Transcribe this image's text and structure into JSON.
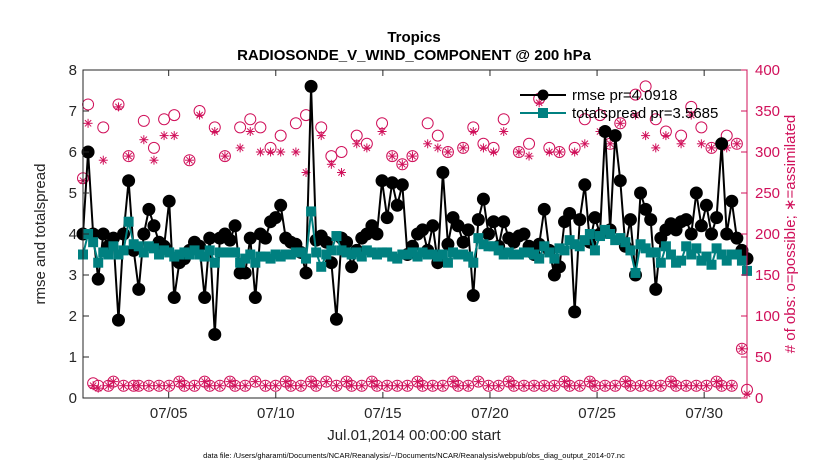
{
  "chart_data": {
    "type": "line",
    "title": "Tropics",
    "subtitle": "RADIOSONDE_V_WIND_COMPONENT @ 200 hPa",
    "xlabel": "Jul.01,2014 00:00:00 start",
    "ylabel": "rmse and totalspread",
    "ylabel_right": "# of obs: o=possible; ∗=assimilated",
    "footnote": "data file: /Users/gharamti/Documents/NCAR/Reanalysis/~/Documents/NCAR/Reanalysis/webpub/obs_diag_output_2014-07.nc",
    "xlim": [
      1.0,
      32.0
    ],
    "ylim": [
      0,
      8
    ],
    "ylim_right": [
      0,
      400
    ],
    "x_ticks": [
      5,
      10,
      15,
      20,
      25,
      30
    ],
    "x_tick_labels": [
      "07/05",
      "07/10",
      "07/15",
      "07/20",
      "07/25",
      "07/30"
    ],
    "y_ticks": [
      "0",
      "1",
      "2",
      "3",
      "4",
      "5",
      "6",
      "7",
      "8"
    ],
    "y_ticks_right": [
      "0",
      "50",
      "100",
      "150",
      "200",
      "250",
      "300",
      "350",
      "400"
    ],
    "grid": false,
    "legend_position": "top-right",
    "colors": {
      "rmse": "#000000",
      "totalspread": "#008080",
      "obs": "#d0105a",
      "axis": "#262626"
    },
    "series": [
      {
        "name": "rmse",
        "legend": "rmse pr=4.0918",
        "axis": "left",
        "marker": "circle",
        "values": [
          4.0,
          6.0,
          4.0,
          2.9,
          4.0,
          3.7,
          3.9,
          1.9,
          4.0,
          5.3,
          3.6,
          2.65,
          4.0,
          4.6,
          4.2,
          3.8,
          3.7,
          4.8,
          2.45,
          3.3,
          3.4,
          3.6,
          3.8,
          3.7,
          2.45,
          3.9,
          1.55,
          3.9,
          4.0,
          3.85,
          4.2,
          3.05,
          3.05,
          3.9,
          2.45,
          4.0,
          3.9,
          4.3,
          4.4,
          4.7,
          3.9,
          3.8,
          3.75,
          3.55,
          3.05,
          7.6,
          3.85,
          3.95,
          3.8,
          3.3,
          1.92,
          3.9,
          3.8,
          3.2,
          3.6,
          3.9,
          4.0,
          4.2,
          4.0,
          5.3,
          4.4,
          5.25,
          4.7,
          5.2,
          3.5,
          3.7,
          4.0,
          4.1,
          3.6,
          4.2,
          3.3,
          5.5,
          3.75,
          4.4,
          4.2,
          3.8,
          4.1,
          2.5,
          4.35,
          4.85,
          4.0,
          4.3,
          3.7,
          4.3,
          3.9,
          3.8,
          3.95,
          4.0,
          3.7,
          3.5,
          3.75,
          4.6,
          3.6,
          3.0,
          3.2,
          4.3,
          4.5,
          2.1,
          4.35,
          5.2,
          3.8,
          4.4,
          4.0,
          6.5,
          4.1,
          6.4,
          5.3,
          3.7,
          4.35,
          3.0,
          5.0,
          4.6,
          4.35,
          2.65,
          3.9,
          4.1,
          4.25,
          4.1,
          4.3,
          4.35,
          4.0,
          5.0,
          4.2,
          4.7,
          4.0,
          4.4,
          6.2,
          4.0,
          4.8,
          3.9,
          3.6,
          3.4
        ]
      },
      {
        "name": "totalspread",
        "legend": "totalspread pr=3.5685",
        "axis": "left",
        "marker": "square",
        "values": [
          3.5,
          4.0,
          3.8,
          3.3,
          3.55,
          3.5,
          3.7,
          3.5,
          3.6,
          4.3,
          3.75,
          3.7,
          3.55,
          3.7,
          3.65,
          3.5,
          3.6,
          3.55,
          3.45,
          3.5,
          3.55,
          3.5,
          3.6,
          3.5,
          3.45,
          3.6,
          3.3,
          3.55,
          3.55,
          3.55,
          3.55,
          3.3,
          3.4,
          3.5,
          3.3,
          3.45,
          3.45,
          3.4,
          3.5,
          3.45,
          3.5,
          3.5,
          3.55,
          3.55,
          3.4,
          4.55,
          3.55,
          3.2,
          3.5,
          3.6,
          3.95,
          3.6,
          3.55,
          3.5,
          3.55,
          3.45,
          3.6,
          3.55,
          3.5,
          3.55,
          3.55,
          3.45,
          3.4,
          3.5,
          3.5,
          3.55,
          3.45,
          3.55,
          3.5,
          3.5,
          3.45,
          3.5,
          3.3,
          3.55,
          3.5,
          3.5,
          3.45,
          3.3,
          3.9,
          3.75,
          3.7,
          3.7,
          3.6,
          3.5,
          3.55,
          3.5,
          3.5,
          3.55,
          3.55,
          3.5,
          3.4,
          3.7,
          3.55,
          3.4,
          3.65,
          3.6,
          3.85,
          3.75,
          3.7,
          3.85,
          4.0,
          3.6,
          3.95,
          4.1,
          4.0,
          3.85,
          3.9,
          3.8,
          3.6,
          3.05,
          3.75,
          3.65,
          3.55,
          3.55,
          3.3,
          3.7,
          3.5,
          3.3,
          3.35,
          3.7,
          3.5,
          3.65,
          3.35,
          3.45,
          3.25,
          3.65,
          3.5,
          3.35,
          3.5,
          3.5,
          3.35,
          3.1
        ]
      },
      {
        "name": "obs possible",
        "legend": "",
        "axis": "right",
        "marker": "open-circle",
        "values": [
          268,
          358,
          18,
          15,
          330,
          15,
          20,
          358,
          15,
          295,
          15,
          15,
          338,
          15,
          305,
          15,
          340,
          15,
          345,
          20,
          15,
          290,
          15,
          350,
          20,
          15,
          330,
          15,
          295,
          20,
          15,
          330,
          15,
          340,
          20,
          330,
          15,
          305,
          15,
          320,
          20,
          15,
          335,
          15,
          345,
          20,
          15,
          330,
          20,
          295,
          15,
          300,
          20,
          15,
          320,
          15,
          310,
          20,
          15,
          335,
          15,
          295,
          15,
          285,
          15,
          295,
          20,
          15,
          335,
          15,
          320,
          15,
          300,
          20,
          15,
          305,
          15,
          330,
          20,
          310,
          15,
          305,
          15,
          340,
          20,
          15,
          300,
          15,
          310,
          15,
          365,
          15,
          305,
          15,
          300,
          20,
          15,
          305,
          15,
          340,
          20,
          15,
          345,
          15,
          310,
          15,
          335,
          20,
          15,
          370,
          15,
          380,
          15,
          340,
          15,
          325,
          20,
          15,
          320,
          15,
          355,
          15,
          330,
          15,
          305,
          20,
          15,
          320,
          15,
          310,
          60,
          10
        ]
      },
      {
        "name": "obs assimilated",
        "legend": "",
        "axis": "right",
        "marker": "asterisk",
        "values": [
          265,
          335,
          15,
          12,
          290,
          15,
          20,
          355,
          15,
          295,
          15,
          15,
          315,
          15,
          290,
          15,
          320,
          15,
          320,
          20,
          15,
          290,
          15,
          345,
          20,
          15,
          325,
          15,
          295,
          20,
          15,
          305,
          15,
          325,
          20,
          300,
          15,
          300,
          15,
          300,
          20,
          15,
          300,
          15,
          275,
          20,
          15,
          320,
          20,
          285,
          15,
          275,
          20,
          15,
          310,
          15,
          305,
          20,
          15,
          325,
          15,
          295,
          15,
          285,
          15,
          295,
          20,
          15,
          310,
          15,
          305,
          15,
          300,
          20,
          15,
          305,
          15,
          325,
          20,
          305,
          15,
          300,
          15,
          325,
          20,
          15,
          300,
          15,
          295,
          15,
          360,
          15,
          300,
          15,
          300,
          20,
          15,
          300,
          15,
          310,
          20,
          15,
          325,
          15,
          310,
          15,
          335,
          20,
          15,
          345,
          15,
          320,
          15,
          305,
          15,
          320,
          20,
          15,
          310,
          15,
          345,
          15,
          310,
          15,
          305,
          20,
          15,
          305,
          15,
          310,
          60,
          5
        ]
      }
    ]
  }
}
